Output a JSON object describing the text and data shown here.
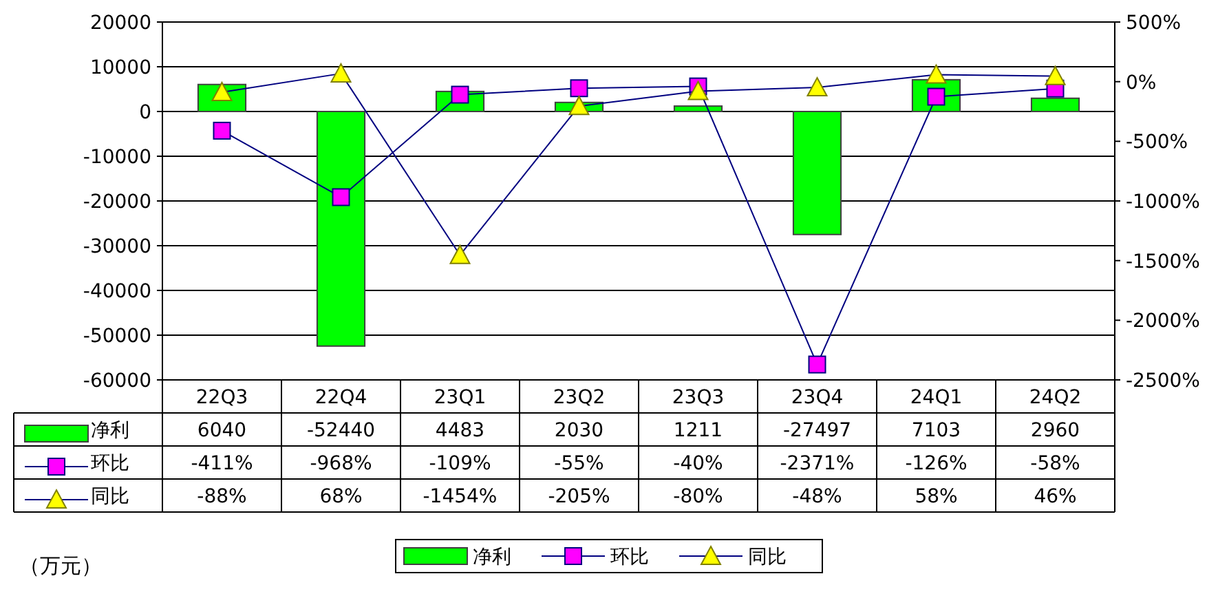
{
  "chart_data": {
    "type": "bar",
    "categories": [
      "22Q3",
      "22Q4",
      "23Q1",
      "23Q2",
      "23Q3",
      "23Q4",
      "24Q1",
      "24Q2"
    ],
    "series": [
      {
        "name": "净利",
        "color": "#00ff00",
        "values": [
          6040,
          -52440,
          4483,
          2030,
          1211,
          -27497,
          7103,
          2960
        ],
        "value_labels": [
          "6040",
          "-52440",
          "4483",
          "2030",
          "1211",
          "-27497",
          "7103",
          "2960"
        ]
      },
      {
        "name": "环比",
        "type": "line",
        "axis": "y2",
        "marker": "square",
        "color": "#ff00ff",
        "values": [
          -411,
          -968,
          -109,
          -55,
          -40,
          -2371,
          -126,
          -58
        ],
        "value_labels": [
          "-411%",
          "-968%",
          "-109%",
          "-55%",
          "-40%",
          "-2371%",
          "-126%",
          "-58%"
        ]
      },
      {
        "name": "同比",
        "type": "line",
        "axis": "y2",
        "marker": "triangle",
        "color": "#ffff00",
        "values": [
          -88,
          68,
          -1454,
          -205,
          -80,
          -48,
          58,
          46
        ],
        "value_labels": [
          "-88%",
          "68%",
          "-1454%",
          "-205%",
          "-80%",
          "-48%",
          "58%",
          "46%"
        ]
      }
    ],
    "ylim": [
      -60000,
      20000
    ],
    "yticks": [
      -60000,
      -50000,
      -40000,
      -30000,
      -20000,
      -10000,
      0,
      10000,
      20000
    ],
    "y2lim": [
      -2500,
      500
    ],
    "y2ticks": [
      {
        "value": -2500,
        "label": "-2500%"
      },
      {
        "value": -2000,
        "label": "-2000%"
      },
      {
        "value": -1500,
        "label": "-1500%"
      },
      {
        "value": -1000,
        "label": "-1000%"
      },
      {
        "value": -500,
        "label": "-500%"
      },
      {
        "value": 0,
        "label": "0%"
      },
      {
        "value": 500,
        "label": "500%"
      }
    ],
    "grid": "y",
    "legend": "bottom",
    "annotations": [
      "（万元）"
    ]
  }
}
